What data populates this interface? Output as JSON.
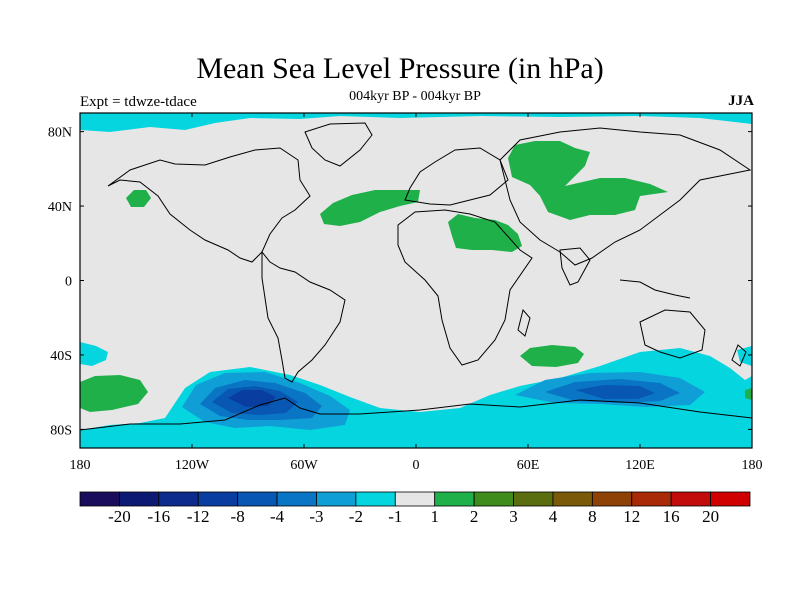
{
  "title": "Mean Sea Level Pressure (in hPa)",
  "left_label": "Expt = tdwze-tdace",
  "center_label": "004kyr BP - 004kyr BP",
  "right_label": "JJA",
  "map": {
    "type": "filled-contour-map",
    "variable": "Mean Sea Level Pressure",
    "units": "hPa",
    "projection": "cylindrical-equidistant",
    "lon_range": [
      -180,
      180
    ],
    "lat_range": [
      -90,
      90
    ],
    "x_ticks": [
      "180",
      "120W",
      "60W",
      "0",
      "60E",
      "120E",
      "180"
    ],
    "y_ticks": [
      "80N",
      "40N",
      "0",
      "40S",
      "80S"
    ],
    "land_outline_color": "#000000",
    "background_color": "#e6e6e6"
  },
  "colorbar": {
    "labels": [
      "-20",
      "-16",
      "-12",
      "-8",
      "-4",
      "-3",
      "-2",
      "-1",
      "1",
      "2",
      "3",
      "4",
      "8",
      "12",
      "16",
      "20"
    ],
    "colors": [
      "#1a0d5c",
      "#0d1a73",
      "#0d2b8c",
      "#0a3da0",
      "#0857b3",
      "#0a75c4",
      "#0f9ed6",
      "#05d5df",
      "#e6e6e6",
      "#1fb04a",
      "#3f8c1d",
      "#5a6e0f",
      "#7a5a08",
      "#8f4206",
      "#a82a06",
      "#c20c0c",
      "#d10000"
    ]
  }
}
